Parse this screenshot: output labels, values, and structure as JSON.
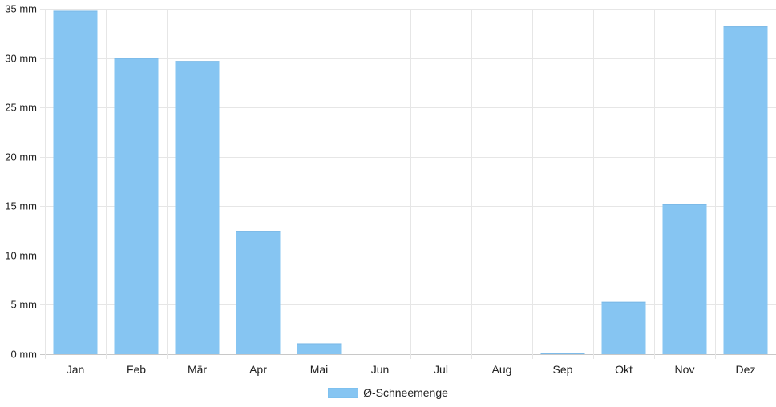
{
  "chart_data": {
    "type": "bar",
    "categories": [
      "Jan",
      "Feb",
      "Mär",
      "Apr",
      "Mai",
      "Jun",
      "Jul",
      "Aug",
      "Sep",
      "Okt",
      "Nov",
      "Dez"
    ],
    "series": [
      {
        "name": "Ø-Schneemenge",
        "values": [
          34.8,
          30.0,
          29.7,
          12.5,
          1.1,
          0,
          0,
          0,
          0.1,
          5.3,
          15.2,
          33.2
        ],
        "color": "#86c5f2"
      }
    ],
    "ylim": [
      0,
      35
    ],
    "yticks": [
      0,
      5,
      10,
      15,
      20,
      25,
      30,
      35
    ],
    "ytick_labels": [
      "0 mm",
      "5 mm",
      "10 mm",
      "15 mm",
      "20 mm",
      "25 mm",
      "30 mm",
      "35 mm"
    ],
    "grid": true,
    "legend_position": "bottom"
  },
  "legend": {
    "label": "Ø-Schneemenge"
  }
}
